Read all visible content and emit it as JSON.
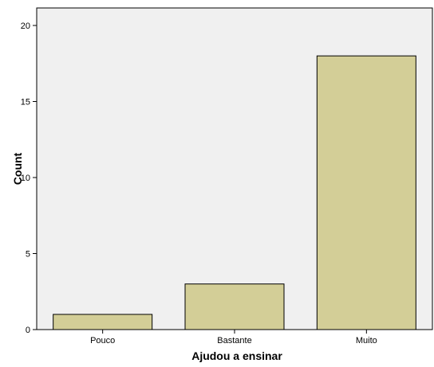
{
  "chart_data": {
    "type": "bar",
    "categories": [
      "Pouco",
      "Bastante",
      "Muito"
    ],
    "values": [
      1,
      3,
      18
    ],
    "xlabel": "Ajudou a ensinar",
    "ylabel": "Count",
    "ylim": [
      0,
      20
    ],
    "yticks": [
      0,
      5,
      10,
      15,
      20
    ],
    "grid": false,
    "colors": {
      "bar_fill": "#d3ce97",
      "bar_stroke": "#000000",
      "plot_background": "#f0f0f0"
    }
  }
}
